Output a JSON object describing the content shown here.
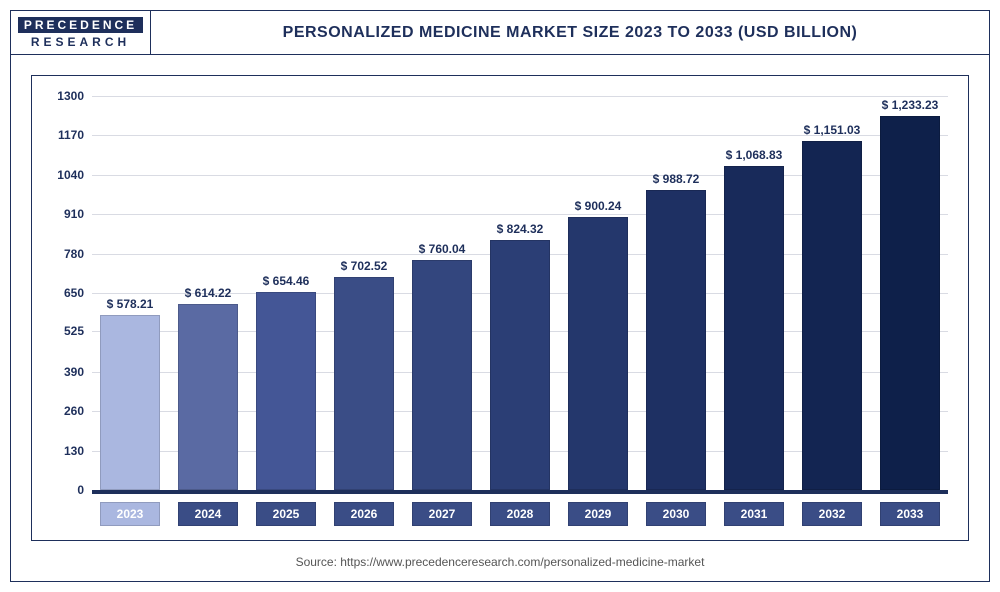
{
  "logo": {
    "top": "PRECEDENCE",
    "bottom": "RESEARCH"
  },
  "title": "PERSONALIZED MEDICINE MARKET SIZE 2023 TO 2033 (USD BILLION)",
  "title_fontsize": 16,
  "source_label": "Source: https://www.precedenceresearch.com/personalized-medicine-market",
  "chart": {
    "type": "bar",
    "categories": [
      "2023",
      "2024",
      "2025",
      "2026",
      "2027",
      "2028",
      "2029",
      "2030",
      "2031",
      "2032",
      "2033"
    ],
    "values": [
      578.21,
      614.22,
      654.46,
      702.52,
      760.04,
      824.32,
      900.24,
      988.72,
      1068.83,
      1151.03,
      1233.23
    ],
    "value_labels": [
      "$ 578.21",
      "$ 614.22",
      "$ 654.46",
      "$ 702.52",
      "$ 760.04",
      "$ 824.32",
      "$ 900.24",
      "$ 988.72",
      "$ 1,068.83",
      "$ 1,151.03",
      "$ 1,233.23"
    ],
    "bar_colors": [
      "#aab7e0",
      "#5a6aa3",
      "#445696",
      "#3a4d86",
      "#33467e",
      "#2b3e75",
      "#24376c",
      "#1e3063",
      "#182a5a",
      "#132552",
      "#0e204a"
    ],
    "ylim": [
      0,
      1300
    ],
    "yticks": [
      0,
      130,
      260,
      390,
      525,
      650,
      780,
      910,
      1040,
      1170,
      1300
    ],
    "ytick_labels": [
      "0",
      "130",
      "260",
      "390",
      "525",
      "650",
      "780",
      "910",
      "1040",
      "1170",
      "1300"
    ],
    "grid_color": "#d9dbe3",
    "background_color": "#ffffff",
    "bar_width": 0.78,
    "value_label_fontsize": 12,
    "value_label_color": "#1e2f5b",
    "tick_label_fontsize": 12,
    "tick_label_color": "#1e2f5b",
    "x_label_bg": "#3a4d86",
    "x_label_bg_highlight": "#aab7e0",
    "x_label_text_color": "#ffffff",
    "x_highlight_index": 0,
    "axis_base_color": "#1e2f5b"
  }
}
